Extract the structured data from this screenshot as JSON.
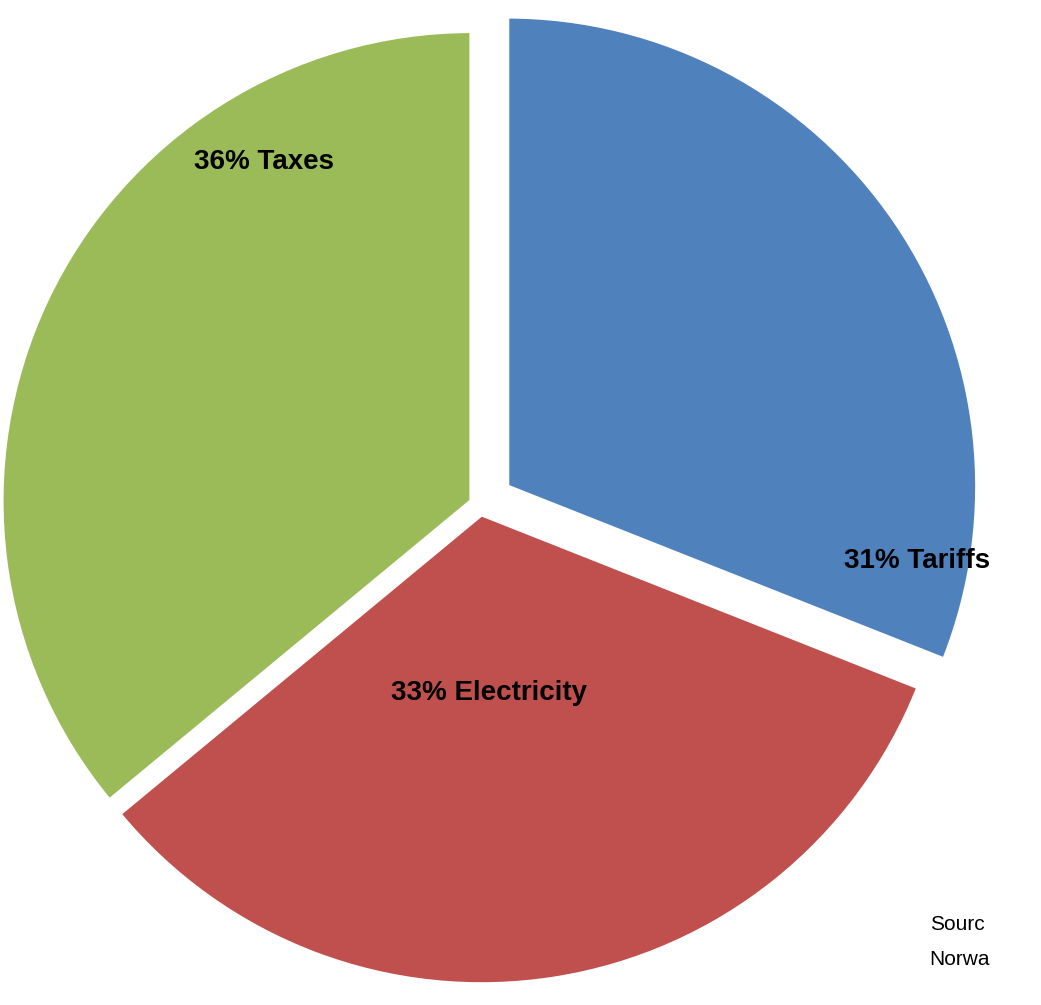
{
  "chart_data": {
    "type": "pie",
    "categories": [
      "Taxes",
      "Electricity",
      "Tariffs"
    ],
    "values": [
      36,
      33,
      31
    ],
    "value_labels": [
      "36% Taxes",
      "33% Electricity",
      "31% Tariffs"
    ],
    "colors": [
      "#9BBB59",
      "#C0504D",
      "#4F81BD"
    ],
    "data_labels": true,
    "annotations": [
      "Sourc",
      "Norwa"
    ]
  }
}
